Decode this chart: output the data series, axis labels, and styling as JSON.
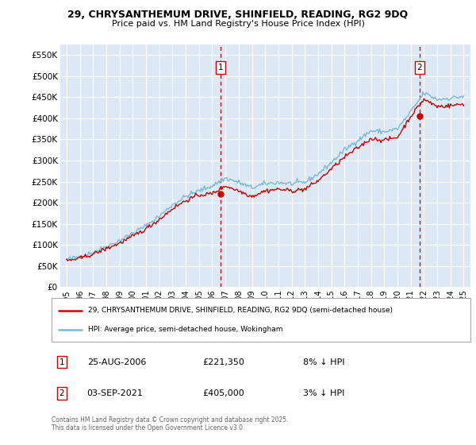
{
  "title1": "29, CHRYSANTHEMUM DRIVE, SHINFIELD, READING, RG2 9DQ",
  "title2": "Price paid vs. HM Land Registry's House Price Index (HPI)",
  "ylabel_ticks": [
    "£0",
    "£50K",
    "£100K",
    "£150K",
    "£200K",
    "£250K",
    "£300K",
    "£350K",
    "£400K",
    "£450K",
    "£500K",
    "£550K"
  ],
  "ytick_vals": [
    0,
    50000,
    100000,
    150000,
    200000,
    250000,
    300000,
    350000,
    400000,
    450000,
    500000,
    550000
  ],
  "ylim": [
    0,
    575000
  ],
  "background_color": "#dce9f5",
  "grid_color": "#ffffff",
  "hpi_color": "#7ab8d9",
  "sale_color": "#cc0000",
  "marker1_x_year": 2006.625,
  "marker1_price": 221350,
  "marker1_date": "25-AUG-2006",
  "marker1_pct": "8% ↓ HPI",
  "marker1_price_str": "£221,350",
  "marker2_x_year": 2021.667,
  "marker2_price": 405000,
  "marker2_date": "03-SEP-2021",
  "marker2_pct": "3% ↓ HPI",
  "marker2_price_str": "£405,000",
  "legend_line1": "29, CHRYSANTHEMUM DRIVE, SHINFIELD, READING, RG2 9DQ (semi-detached house)",
  "legend_line2": "HPI: Average price, semi-detached house, Wokingham",
  "footnote": "Contains HM Land Registry data © Crown copyright and database right 2025.\nThis data is licensed under the Open Government Licence v3.0.",
  "xtick_years": [
    1995,
    1996,
    1997,
    1998,
    1999,
    2000,
    2001,
    2002,
    2003,
    2004,
    2005,
    2006,
    2007,
    2008,
    2009,
    2010,
    2011,
    2012,
    2013,
    2014,
    2015,
    2016,
    2017,
    2018,
    2019,
    2020,
    2021,
    2022,
    2023,
    2024,
    2025
  ],
  "hpi_base": [
    65000,
    72000,
    82000,
    96000,
    110000,
    128000,
    145000,
    168000,
    195000,
    215000,
    228000,
    240000,
    258000,
    248000,
    235000,
    245000,
    248000,
    245000,
    248000,
    268000,
    295000,
    325000,
    348000,
    370000,
    368000,
    375000,
    415000,
    460000,
    445000,
    448000,
    452000
  ],
  "sale_base": [
    62000,
    68000,
    78000,
    91000,
    104000,
    120000,
    138000,
    160000,
    186000,
    205000,
    218000,
    221350,
    240000,
    228000,
    215000,
    228000,
    232000,
    228000,
    232000,
    252000,
    280000,
    308000,
    330000,
    352000,
    348000,
    355000,
    405000,
    445000,
    428000,
    430000,
    434000
  ],
  "xlim_left": 1994.5,
  "xlim_right": 2025.5
}
